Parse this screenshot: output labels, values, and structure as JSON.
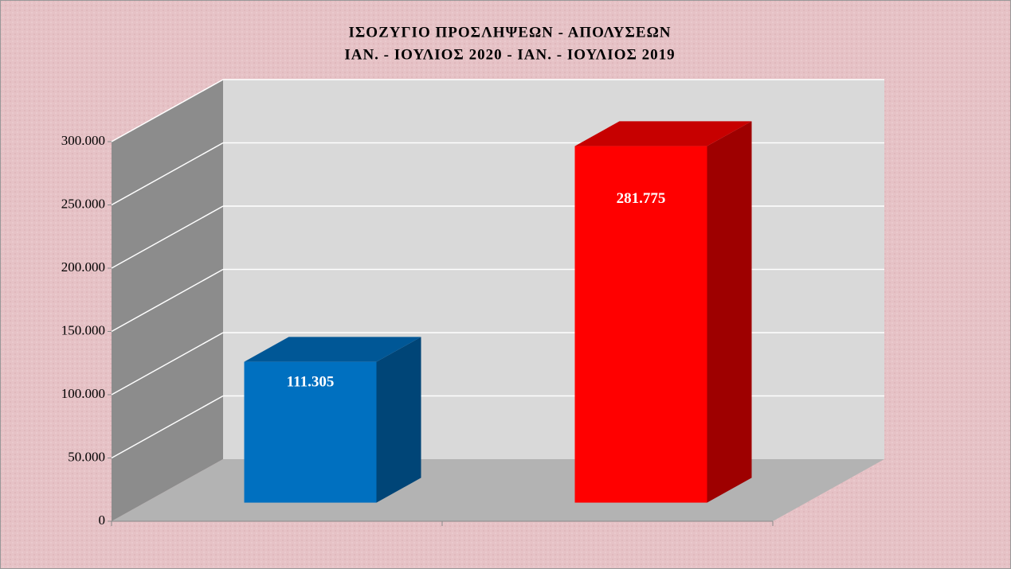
{
  "chart_data": {
    "type": "bar3d",
    "title": "ΙΣΟΖΥΓΙΟ ΠΡΟΣΛΗΨΕΩΝ  -  ΑΠΟΛΥΣΕΩΝ",
    "subtitle": "ΙΑΝ. - ΙΟΥΛΙΟΣ 2020 -  ΙΑΝ. - ΙΟΥΛΙΟΣ 2019",
    "categories": [
      null,
      null
    ],
    "values": [
      111305,
      281775
    ],
    "value_labels": [
      "111.305",
      "281.775"
    ],
    "colors": [
      "#0070c0",
      "#ff0000"
    ],
    "ylim": [
      0,
      300000
    ],
    "yticks": [
      0,
      {
        "value": 50000,
        "label": "50.000"
      },
      {
        "value": 100000,
        "label": "100.000"
      },
      {
        "value": 150000,
        "label": "150.000"
      },
      {
        "value": 200000,
        "label": "200.000"
      },
      {
        "value": 250000,
        "label": "250.000"
      },
      {
        "value": 300000,
        "label": "300.000"
      }
    ],
    "grid": true
  }
}
